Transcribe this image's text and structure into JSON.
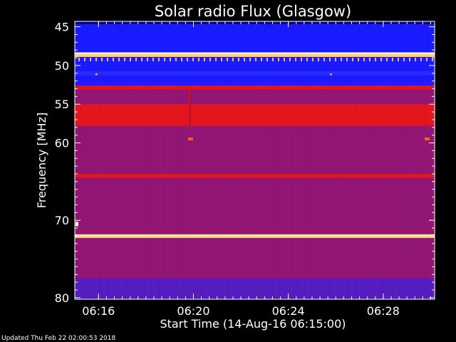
{
  "chart_data": {
    "type": "heatmap",
    "title": "Solar radio Flux (Glasgow)",
    "xlabel": "Start Time (14-Aug-16 06:15:00)",
    "ylabel": "Frequency [MHz]",
    "x_range": [
      "06:15:00",
      "06:30:10"
    ],
    "x_ticks": [
      "06:16",
      "06:20",
      "06:24",
      "06:28"
    ],
    "y_range": [
      44.3,
      80.2
    ],
    "y_ticks": [
      45,
      50,
      55,
      60,
      70,
      80
    ],
    "y_axis_direction": "downward",
    "colormap": [
      "#0000ff",
      "#6a0a8a",
      "#d4141a",
      "#ffa500",
      "#fffacd"
    ],
    "bands": [
      {
        "freq_from": 44.3,
        "freq_to": 48.4,
        "level": "blue"
      },
      {
        "freq_from": 48.4,
        "freq_to": 48.9,
        "level": "very-high"
      },
      {
        "freq_from": 48.9,
        "freq_to": 52.6,
        "level": "blue"
      },
      {
        "freq_from": 52.6,
        "freq_to": 53.1,
        "level": "high"
      },
      {
        "freq_from": 53.1,
        "freq_to": 55.0,
        "level": "medium"
      },
      {
        "freq_from": 55.0,
        "freq_to": 57.8,
        "level": "high"
      },
      {
        "freq_from": 57.8,
        "freq_to": 64.0,
        "level": "medium"
      },
      {
        "freq_from": 64.0,
        "freq_to": 64.5,
        "level": "high"
      },
      {
        "freq_from": 64.5,
        "freq_to": 71.8,
        "level": "medium"
      },
      {
        "freq_from": 71.8,
        "freq_to": 72.3,
        "level": "very-high"
      },
      {
        "freq_from": 72.3,
        "freq_to": 77.5,
        "level": "medium"
      },
      {
        "freq_from": 77.5,
        "freq_to": 80.2,
        "level": "low"
      }
    ],
    "footer": "Updated Thu Feb 22 02:00:53 2018"
  }
}
